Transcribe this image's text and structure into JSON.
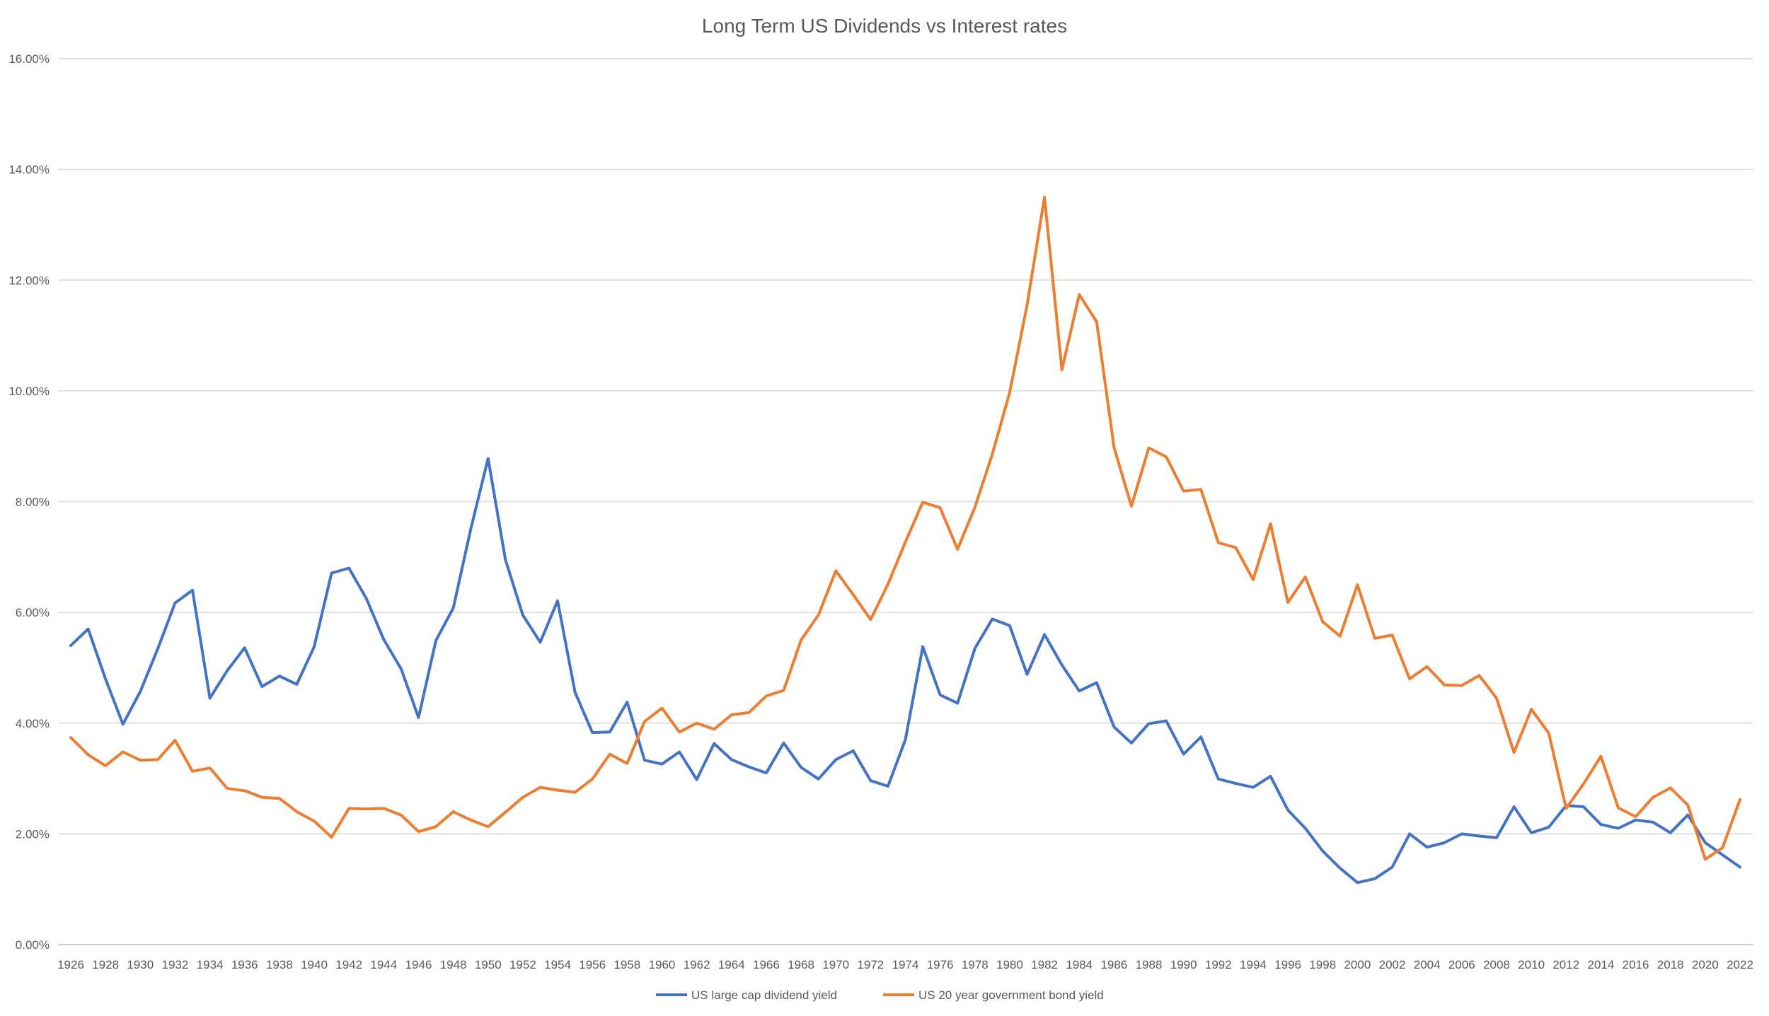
{
  "chart_data": {
    "type": "line",
    "title": "Long Term US Dividends vs Interest rates",
    "xlabel": "",
    "ylabel": "",
    "x": [
      1926,
      1927,
      1928,
      1929,
      1930,
      1931,
      1932,
      1933,
      1934,
      1935,
      1936,
      1937,
      1938,
      1939,
      1940,
      1941,
      1942,
      1943,
      1944,
      1945,
      1946,
      1947,
      1948,
      1949,
      1950,
      1951,
      1952,
      1953,
      1954,
      1955,
      1956,
      1957,
      1958,
      1959,
      1960,
      1961,
      1962,
      1963,
      1964,
      1965,
      1966,
      1967,
      1968,
      1969,
      1970,
      1971,
      1972,
      1973,
      1974,
      1975,
      1976,
      1977,
      1978,
      1979,
      1980,
      1981,
      1982,
      1983,
      1984,
      1985,
      1986,
      1987,
      1988,
      1989,
      1990,
      1991,
      1992,
      1993,
      1994,
      1995,
      1996,
      1997,
      1998,
      1999,
      2000,
      2001,
      2002,
      2003,
      2004,
      2005,
      2006,
      2007,
      2008,
      2009,
      2010,
      2011,
      2012,
      2013,
      2014,
      2015,
      2016,
      2017,
      2018,
      2019,
      2020,
      2021,
      2022
    ],
    "x_tick_labels": [
      "1926",
      "1928",
      "1930",
      "1932",
      "1934",
      "1936",
      "1938",
      "1940",
      "1942",
      "1944",
      "1946",
      "1948",
      "1950",
      "1952",
      "1954",
      "1956",
      "1958",
      "1960",
      "1962",
      "1964",
      "1966",
      "1968",
      "1970",
      "1972",
      "1974",
      "1976",
      "1978",
      "1980",
      "1982",
      "1984",
      "1986",
      "1988",
      "1990",
      "1992",
      "1994",
      "1996",
      "1998",
      "2000",
      "2002",
      "2004",
      "2006",
      "2008",
      "2010",
      "2012",
      "2014",
      "2016",
      "2018",
      "2020",
      "2022"
    ],
    "y_tick_labels": [
      "0.00%",
      "2.00%",
      "4.00%",
      "6.00%",
      "8.00%",
      "10.00%",
      "12.00%",
      "14.00%",
      "16.00%"
    ],
    "ylim": [
      0,
      16
    ],
    "grid": true,
    "legend_position": "bottom",
    "series": [
      {
        "name": "US large cap dividend yield",
        "color": "#4472c4",
        "values": [
          5.4,
          5.7,
          4.8,
          3.98,
          4.57,
          5.34,
          6.17,
          6.4,
          4.45,
          4.95,
          5.36,
          4.66,
          4.85,
          4.7,
          5.38,
          6.71,
          6.8,
          6.25,
          5.51,
          4.98,
          4.1,
          5.49,
          6.08,
          7.5,
          8.78,
          6.95,
          5.95,
          5.46,
          6.21,
          4.56,
          3.83,
          3.84,
          4.38,
          3.33,
          3.26,
          3.48,
          2.98,
          3.63,
          3.34,
          3.21,
          3.1,
          3.64,
          3.2,
          2.99,
          3.34,
          3.5,
          2.96,
          2.86,
          3.7,
          5.38,
          4.51,
          4.36,
          5.35,
          5.88,
          5.76,
          4.88,
          5.6,
          5.05,
          4.58,
          4.73,
          3.93,
          3.64,
          3.99,
          4.04,
          3.44,
          3.75,
          2.99,
          2.91,
          2.84,
          3.04,
          2.43,
          2.1,
          1.69,
          1.38,
          1.12,
          1.19,
          1.4,
          2.0,
          1.76,
          1.84,
          2.0,
          1.96,
          1.93,
          2.49,
          2.02,
          2.12,
          2.51,
          2.49,
          2.17,
          2.1,
          2.25,
          2.21,
          2.02,
          2.34,
          1.84,
          1.62,
          1.4
        ]
      },
      {
        "name": "US 20 year government bond yield",
        "color": "#ed7d31",
        "values": [
          3.74,
          3.43,
          3.23,
          3.48,
          3.33,
          3.34,
          3.69,
          3.13,
          3.19,
          2.82,
          2.78,
          2.66,
          2.64,
          2.4,
          2.23,
          1.94,
          2.46,
          2.45,
          2.46,
          2.34,
          2.04,
          2.13,
          2.4,
          2.25,
          2.13,
          2.39,
          2.66,
          2.84,
          2.79,
          2.75,
          2.99,
          3.44,
          3.27,
          4.03,
          4.27,
          3.84,
          4.0,
          3.89,
          4.15,
          4.19,
          4.49,
          4.59,
          5.5,
          5.95,
          6.75,
          6.32,
          5.87,
          6.51,
          7.27,
          7.99,
          7.89,
          7.14,
          7.9,
          8.86,
          9.97,
          11.55,
          13.5,
          10.38,
          11.74,
          11.25,
          8.98,
          7.92,
          8.97,
          8.81,
          8.19,
          8.22,
          7.26,
          7.17,
          6.59,
          7.6,
          6.18,
          6.64,
          5.83,
          5.57,
          6.5,
          5.53,
          5.59,
          4.8,
          5.02,
          4.69,
          4.68,
          4.86,
          4.45,
          3.47,
          4.25,
          3.82,
          2.46,
          2.9,
          3.4,
          2.47,
          2.31,
          2.66,
          2.83,
          2.52,
          1.54,
          1.75,
          2.62
        ]
      }
    ]
  }
}
